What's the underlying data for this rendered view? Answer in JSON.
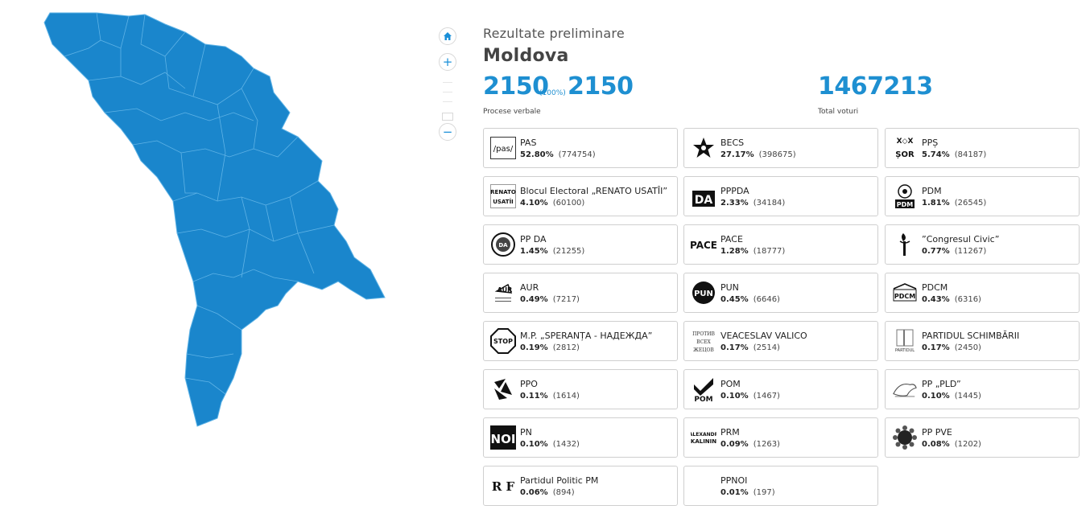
{
  "map": {
    "fill": "#1a86cc",
    "stroke": "#5fb3e6",
    "controls": {
      "home": "home-icon",
      "zoom_in": "+",
      "zoom_out": "−"
    }
  },
  "header": {
    "subtitle": "Rezultate preliminare",
    "region": "Moldova"
  },
  "stats": {
    "processed": "2150",
    "processed_pct": "(100%)",
    "total_reports": "2150",
    "reports_label": "Procese verbale",
    "total_votes": "1467213",
    "votes_label": "Total voturi"
  },
  "accent": "#1e8fd1",
  "parties": [
    {
      "name": "PAS",
      "pct": "52.80%",
      "votes": "(774754)",
      "logo": "/pas/"
    },
    {
      "name": "BECS",
      "pct": "27.17%",
      "votes": "(398675)",
      "logo": ""
    },
    {
      "name": "PPȘ",
      "pct": "5.74%",
      "votes": "(84187)",
      "logo": "ȘOR"
    },
    {
      "name": "Blocul Electoral „RENATO USATÎI”",
      "pct": "4.10%",
      "votes": "(60100)",
      "logo": "RENATO USATÎI"
    },
    {
      "name": "PPPDA",
      "pct": "2.33%",
      "votes": "(34184)",
      "logo": "DA"
    },
    {
      "name": "PDM",
      "pct": "1.81%",
      "votes": "(26545)",
      "logo": "PDM"
    },
    {
      "name": "PP DA",
      "pct": "1.45%",
      "votes": "(21255)",
      "logo": ""
    },
    {
      "name": "PACE",
      "pct": "1.28%",
      "votes": "(18777)",
      "logo": "PACE"
    },
    {
      "name": "”Congresul Civic”",
      "pct": "0.77%",
      "votes": "(11267)",
      "logo": ""
    },
    {
      "name": "AUR",
      "pct": "0.49%",
      "votes": "(7217)",
      "logo": "AUR"
    },
    {
      "name": "PUN",
      "pct": "0.45%",
      "votes": "(6646)",
      "logo": "PUN"
    },
    {
      "name": "PDCM",
      "pct": "0.43%",
      "votes": "(6316)",
      "logo": "PDCM"
    },
    {
      "name": "M.P. „SPERANȚA - НАДЕЖДА”",
      "pct": "0.19%",
      "votes": "(2812)",
      "logo": "STOP"
    },
    {
      "name": "VEACESLAV VALICO",
      "pct": "0.17%",
      "votes": "(2514)",
      "logo": "ПРОТИВ ВСЕХ ЖЕЦОВ"
    },
    {
      "name": "PARTIDUL SCHIMBĂRII",
      "pct": "0.17%",
      "votes": "(2450)",
      "logo": ""
    },
    {
      "name": "PPO",
      "pct": "0.11%",
      "votes": "(1614)",
      "logo": ""
    },
    {
      "name": "POM",
      "pct": "0.10%",
      "votes": "(1467)",
      "logo": "POM"
    },
    {
      "name": "PP „PLD”",
      "pct": "0.10%",
      "votes": "(1445)",
      "logo": ""
    },
    {
      "name": "PN",
      "pct": "0.10%",
      "votes": "(1432)",
      "logo": "NOI"
    },
    {
      "name": "PRM",
      "pct": "0.09%",
      "votes": "(1263)",
      "logo": "ALEXANDR KALININ"
    },
    {
      "name": "PP PVE",
      "pct": "0.08%",
      "votes": "(1202)",
      "logo": ""
    },
    {
      "name": "Partidul Politic PM",
      "pct": "0.06%",
      "votes": "(894)",
      "logo": "R F"
    },
    {
      "name": "PPNOI",
      "pct": "0.01%",
      "votes": "(197)",
      "logo": ""
    }
  ]
}
